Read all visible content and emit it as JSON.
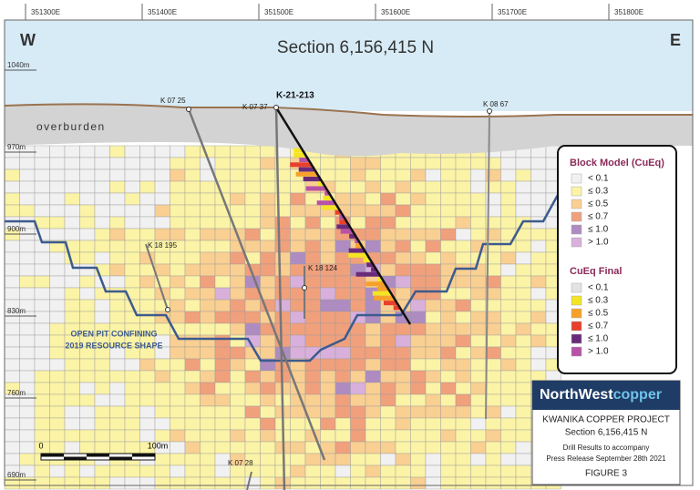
{
  "header": {
    "west": "W",
    "east": "E",
    "title": "Section 6,156,415 N"
  },
  "eastings": [
    "351300E",
    "351400E",
    "351500E",
    "351600E",
    "351700E",
    "351800E"
  ],
  "elevations": [
    "1040m",
    "970m",
    "900m",
    "830m",
    "760m",
    "690m"
  ],
  "labels": {
    "overburden": "overburden",
    "pit_line_1": "OPEN PIT CONFINING",
    "pit_line_2": "2019 RESOURCE SHAPE"
  },
  "drill_holes": [
    "K 07 25",
    "K 07 37",
    "K-21-213",
    "K 08 67",
    "K 18 195",
    "K 18 124",
    "K 07 28"
  ],
  "legend": {
    "block_title": "Block Model (CuEq)",
    "block_items": [
      {
        "label": "< 0.1",
        "color": "#f1f1f1"
      },
      {
        "label": "≤ 0.3",
        "color": "#fbf3a6"
      },
      {
        "label": "≤ 0.5",
        "color": "#f9cf92"
      },
      {
        "label": "≤ 0.7",
        "color": "#f1a07c"
      },
      {
        "label": "≤ 1.0",
        "color": "#ae8cc2"
      },
      {
        "label": "> 1.0",
        "color": "#d8b0db"
      }
    ],
    "final_title": "CuEq Final",
    "final_items": [
      {
        "label": "< 0.1",
        "color": "#e3e3e3"
      },
      {
        "label": "≤ 0.3",
        "color": "#f3e522"
      },
      {
        "label": "≤ 0.5",
        "color": "#f7a12a"
      },
      {
        "label": "≤ 0.7",
        "color": "#e8402c"
      },
      {
        "label": "≤ 1.0",
        "color": "#6a2a7a"
      },
      {
        "label": "> 1.0",
        "color": "#b851a8"
      }
    ]
  },
  "scale": {
    "start": "0",
    "end": "100m"
  },
  "title_block": {
    "logo_1": "NorthWest",
    "logo_2": "copper",
    "project": "KWANIKA COPPER PROJECT",
    "section": "Section 6,156,415 N",
    "note_1": "Drill Results to accompany",
    "note_2": "Press Release September 28th 2021",
    "figure": "FIGURE 3"
  }
}
